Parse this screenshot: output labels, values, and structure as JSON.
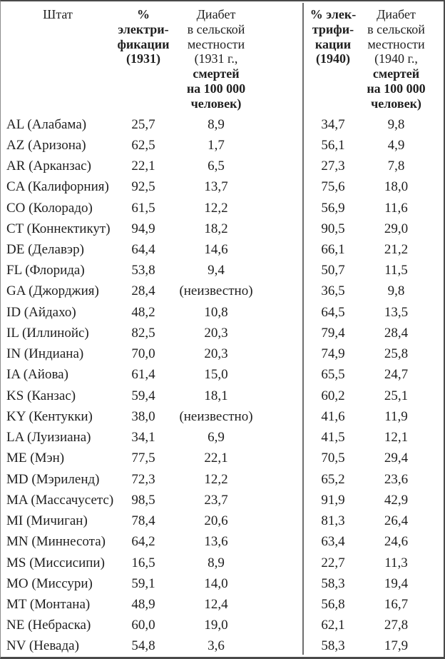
{
  "table": {
    "headers": [
      {
        "regular": "Штат",
        "bold": ""
      },
      {
        "regular": "",
        "bold": "% электри-\nфикации\n(1931)"
      },
      {
        "regular": "Диабет\nв сельской\nместности\n(1931 г.,",
        "bold": "смертей\nна 100 000\nчеловек)"
      },
      {
        "regular": "",
        "bold": "% элек-\nтрифи-\nкации\n(1940)"
      },
      {
        "regular": "Диабет\nв сельской\nместности\n(1940 г.,",
        "bold": "смертей\nна 100 000\nчеловек)"
      }
    ],
    "rows": [
      {
        "state": "AL (Алабама)",
        "elec_1931": "25,7",
        "diab_1931": "8,9",
        "elec_1940": "34,7",
        "diab_1940": "9,8"
      },
      {
        "state": "AZ (Аризона)",
        "elec_1931": "62,5",
        "diab_1931": "1,7",
        "elec_1940": "56,1",
        "diab_1940": "4,9"
      },
      {
        "state": "AR (Арканзас)",
        "elec_1931": "22,1",
        "diab_1931": "6,5",
        "elec_1940": "27,3",
        "diab_1940": "7,8"
      },
      {
        "state": "CA (Калифорния)",
        "elec_1931": "92,5",
        "diab_1931": "13,7",
        "elec_1940": "75,6",
        "diab_1940": "18,0"
      },
      {
        "state": "CO (Колорадо)",
        "elec_1931": "61,5",
        "diab_1931": "12,2",
        "elec_1940": "56,9",
        "diab_1940": "11,6"
      },
      {
        "state": "CT (Коннектикут)",
        "elec_1931": "94,9",
        "diab_1931": "18,2",
        "elec_1940": "90,5",
        "diab_1940": "29,0"
      },
      {
        "state": "DE (Делавэр)",
        "elec_1931": "64,4",
        "diab_1931": "14,6",
        "elec_1940": "66,1",
        "diab_1940": "21,2"
      },
      {
        "state": "FL (Флорида)",
        "elec_1931": "53,8",
        "diab_1931": "9,4",
        "elec_1940": "50,7",
        "diab_1940": "11,5"
      },
      {
        "state": "GA (Джорджия)",
        "elec_1931": "28,4",
        "diab_1931": "(неизвестно)",
        "elec_1940": "36,5",
        "diab_1940": "9,8"
      },
      {
        "state": "ID (Айдахо)",
        "elec_1931": "48,2",
        "diab_1931": "10,8",
        "elec_1940": "64,5",
        "diab_1940": "13,5"
      },
      {
        "state": "IL (Иллинойс)",
        "elec_1931": "82,5",
        "diab_1931": "20,3",
        "elec_1940": "79,4",
        "diab_1940": "28,4"
      },
      {
        "state": "IN (Индиана)",
        "elec_1931": "70,0",
        "diab_1931": "20,3",
        "elec_1940": "74,9",
        "diab_1940": "25,8"
      },
      {
        "state": "IA (Айова)",
        "elec_1931": "61,4",
        "diab_1931": "15,0",
        "elec_1940": "65,5",
        "diab_1940": "24,7"
      },
      {
        "state": "KS (Канзас)",
        "elec_1931": "59,4",
        "diab_1931": "18,1",
        "elec_1940": "60,2",
        "diab_1940": "25,1"
      },
      {
        "state": "KY (Кентукки)",
        "elec_1931": "38,0",
        "diab_1931": "(неизвестно)",
        "elec_1940": "41,6",
        "diab_1940": "11,9"
      },
      {
        "state": "LA (Луизиана)",
        "elec_1931": "34,1",
        "diab_1931": "6,9",
        "elec_1940": "41,5",
        "diab_1940": "12,1"
      },
      {
        "state": "ME (Мэн)",
        "elec_1931": "77,5",
        "diab_1931": "22,1",
        "elec_1940": "70,5",
        "diab_1940": "29,4"
      },
      {
        "state": "MD (Мэриленд)",
        "elec_1931": "72,3",
        "diab_1931": "12,2",
        "elec_1940": "65,2",
        "diab_1940": "23,6"
      },
      {
        "state": "MA (Массачусетс)",
        "elec_1931": "98,5",
        "diab_1931": "23,7",
        "elec_1940": "91,9",
        "diab_1940": "42,9"
      },
      {
        "state": "MI (Мичиган)",
        "elec_1931": "78,4",
        "diab_1931": "20,6",
        "elec_1940": "81,3",
        "diab_1940": "26,4"
      },
      {
        "state": "MN (Миннесота)",
        "elec_1931": "64,2",
        "diab_1931": "13,6",
        "elec_1940": "63,4",
        "diab_1940": "24,6"
      },
      {
        "state": "MS (Миссисипи)",
        "elec_1931": "16,5",
        "diab_1931": "8,9",
        "elec_1940": "22,7",
        "diab_1940": "11,3"
      },
      {
        "state": "MO (Миссури)",
        "elec_1931": "59,1",
        "diab_1931": "14,0",
        "elec_1940": "58,3",
        "diab_1940": "19,4"
      },
      {
        "state": "MT (Монтана)",
        "elec_1931": "48,9",
        "diab_1931": "12,4",
        "elec_1940": "56,8",
        "diab_1940": "16,7"
      },
      {
        "state": "NE (Небраска)",
        "elec_1931": "60,0",
        "diab_1931": "19,0",
        "elec_1940": "62,1",
        "diab_1940": "27,8"
      },
      {
        "state": "NV (Невада)",
        "elec_1931": "54,8",
        "diab_1931": "3,6",
        "elec_1940": "58,3",
        "diab_1940": "17,9"
      }
    ]
  },
  "colors": {
    "background": "#ffffff",
    "text": "#1f1f1f",
    "frame_border": "#4a4a4a",
    "divider": "#6e6e6e"
  }
}
